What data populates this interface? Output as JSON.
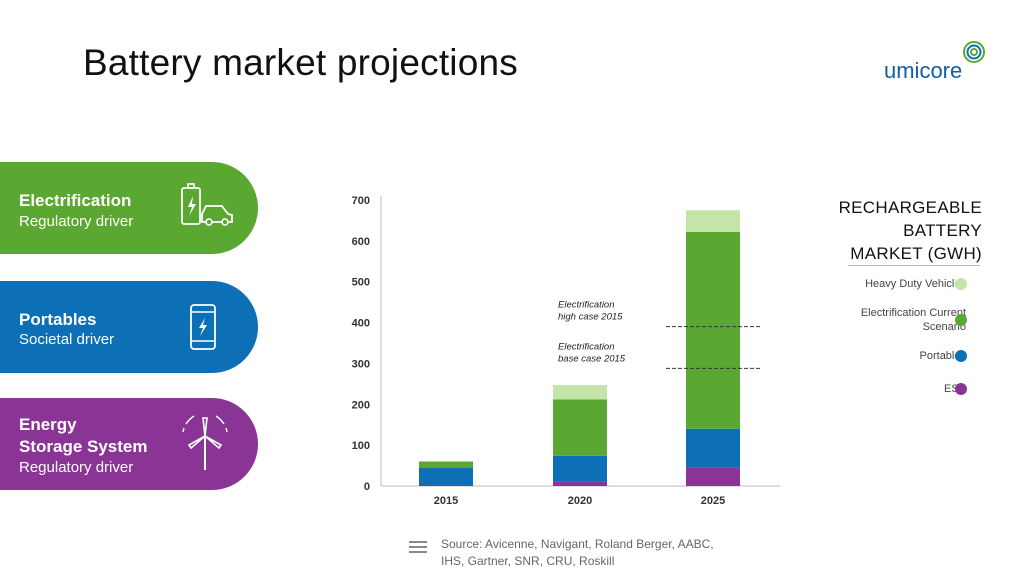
{
  "page": {
    "title": "Battery market projections",
    "logo_text": "umicore"
  },
  "drivers": [
    {
      "title": "Electrification",
      "subtitle": "Regulatory driver",
      "color": "#5aa832",
      "icon": "battery-car-icon"
    },
    {
      "title": "Portables",
      "subtitle": "Societal driver",
      "color": "#0d6fb5",
      "icon": "smartphone-icon"
    },
    {
      "title": "Energy",
      "title2": "Storage System",
      "subtitle": "Regulatory driver",
      "color": "#8a3596",
      "icon": "wind-turbine-icon"
    }
  ],
  "legend": {
    "title_lines": [
      "RECHARGEABLE",
      "BATTERY",
      "MARKET (GWH)"
    ],
    "items": [
      {
        "label": "Heavy Duty Vehicles",
        "color": "#c3e6a8"
      },
      {
        "label": "Electrification Current",
        "label2": "Scenario",
        "color": "#5aa832"
      },
      {
        "label": "Portables",
        "color": "#0d6fb5"
      },
      {
        "label": "ESS",
        "color": "#8a3596"
      }
    ]
  },
  "source": {
    "line1": "Source: Avicenne, Navigant, Roland Berger, AABC,",
    "line2": "IHS, Gartner, SNR, CRU, Roskill"
  },
  "chart_data": {
    "type": "bar",
    "stacked": true,
    "categories": [
      "2015",
      "2020",
      "2025"
    ],
    "ylim": [
      0,
      700
    ],
    "yticks": [
      0,
      100,
      200,
      300,
      400,
      500,
      600,
      700
    ],
    "grid": false,
    "series": [
      {
        "name": "ESS",
        "color": "#8a3596",
        "values": [
          0,
          12,
          45
        ]
      },
      {
        "name": "Portables",
        "color": "#0d6fb5",
        "values": [
          44,
          62,
          95
        ]
      },
      {
        "name": "Electrification Current Scenario",
        "color": "#5aa832",
        "values": [
          16,
          138,
          482
        ]
      },
      {
        "name": "Heavy Duty Vehicles",
        "color": "#c3e6a8",
        "values": [
          0,
          35,
          53
        ]
      }
    ],
    "annotations": [
      {
        "text1": "Electrification",
        "text2": "high case 2015",
        "value": 390,
        "category": "2025"
      },
      {
        "text1": "Electrification",
        "text2": "base case 2015",
        "value": 288,
        "category": "2025"
      }
    ]
  }
}
